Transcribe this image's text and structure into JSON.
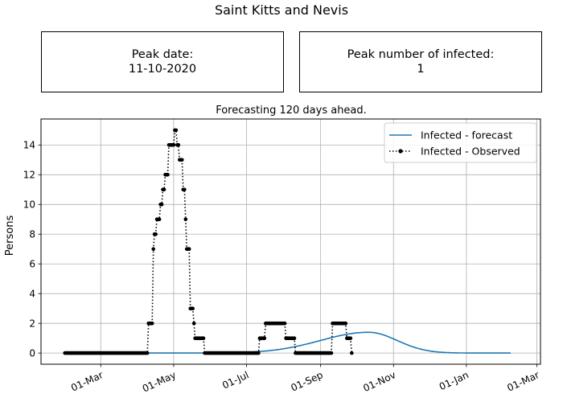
{
  "figure_title": "Saint Kitts and Nevis",
  "peak_date_box": {
    "label": "Peak date:",
    "value": "11-10-2020"
  },
  "peak_infected_box": {
    "label": "Peak number of infected:",
    "value": "1"
  },
  "chart_data": {
    "type": "line",
    "title": "Forecasting 120 days ahead.",
    "xlabel": "",
    "ylabel": "Persons",
    "x_axis": "date",
    "xlim": [
      "2020-01-11",
      "2021-03-04"
    ],
    "ylim": [
      -0.75,
      15.75
    ],
    "x_ticks": [
      {
        "date": "2020-03-01",
        "label": "01-Mar"
      },
      {
        "date": "2020-05-01",
        "label": "01-May"
      },
      {
        "date": "2020-07-01",
        "label": "01-Jul"
      },
      {
        "date": "2020-09-01",
        "label": "01-Sep"
      },
      {
        "date": "2020-11-01",
        "label": "01-Nov"
      },
      {
        "date": "2021-01-01",
        "label": "01-Jan"
      },
      {
        "date": "2021-03-01",
        "label": "01-Mar"
      }
    ],
    "y_ticks": [
      0,
      2,
      4,
      6,
      8,
      10,
      12,
      14
    ],
    "grid": true,
    "legend_position": "top-right",
    "series": [
      {
        "name": "Infected - forecast",
        "style": "solid",
        "color": "#1f77b4",
        "start_date": "2020-04-01",
        "peak_date": "2020-10-11",
        "peak_value": 1.4,
        "end_date": "2021-02-07"
      },
      {
        "name": "Infected - Observed",
        "style": "dotted-markers",
        "color": "#000000",
        "start_date": "2020-01-31",
        "values": [
          0,
          0,
          0,
          0,
          0,
          0,
          0,
          0,
          0,
          0,
          0,
          0,
          0,
          0,
          0,
          0,
          0,
          0,
          0,
          0,
          0,
          0,
          0,
          0,
          0,
          0,
          0,
          0,
          0,
          0,
          0,
          0,
          0,
          0,
          0,
          0,
          0,
          0,
          0,
          0,
          0,
          0,
          0,
          0,
          0,
          0,
          0,
          0,
          0,
          0,
          0,
          0,
          0,
          0,
          0,
          0,
          0,
          0,
          0,
          0,
          0,
          0,
          0,
          0,
          0,
          0,
          0,
          0,
          0,
          0,
          2,
          2,
          2,
          2,
          7,
          8,
          8,
          9,
          9,
          9,
          10,
          10,
          11,
          11,
          12,
          12,
          12,
          14,
          14,
          14,
          14,
          14,
          15,
          15,
          14,
          14,
          13,
          13,
          13,
          11,
          11,
          9,
          7,
          7,
          7,
          3,
          3,
          3,
          2,
          1,
          1,
          1,
          1,
          1,
          1,
          1,
          1,
          0,
          0,
          0,
          0,
          0,
          0,
          0,
          0,
          0,
          0,
          0,
          0,
          0,
          0,
          0,
          0,
          0,
          0,
          0,
          0,
          0,
          0,
          0,
          0,
          0,
          0,
          0,
          0,
          0,
          0,
          0,
          0,
          0,
          0,
          0,
          0,
          0,
          0,
          0,
          0,
          0,
          0,
          0,
          0,
          0,
          0,
          1,
          1,
          1,
          1,
          1,
          2,
          2,
          2,
          2,
          2,
          2,
          2,
          2,
          2,
          2,
          2,
          2,
          2,
          2,
          2,
          2,
          2,
          1,
          1,
          1,
          1,
          1,
          1,
          1,
          1,
          0,
          0,
          0,
          0,
          0,
          0,
          0,
          0,
          0,
          0,
          0,
          0,
          0,
          0,
          0,
          0,
          0,
          0,
          0,
          0,
          0,
          0,
          0,
          0,
          0,
          0,
          0,
          0,
          0,
          0,
          0,
          2,
          2,
          2,
          2,
          2,
          2,
          2,
          2,
          2,
          2,
          2,
          2,
          1,
          1,
          1,
          1,
          0
        ]
      }
    ]
  }
}
